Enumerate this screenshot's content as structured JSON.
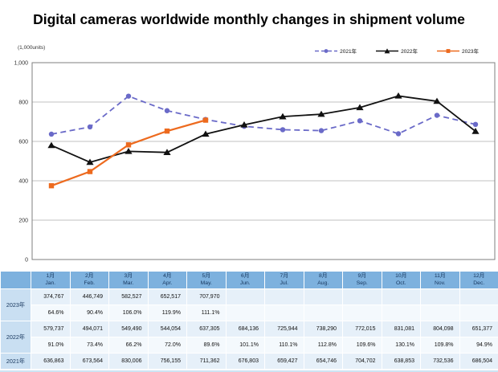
{
  "title": "Digital cameras worldwide monthly changes in shipment volume",
  "chart_data": {
    "type": "line",
    "unit_label": "(1,000units)",
    "x": [
      "Jan.",
      "Feb.",
      "Mar.",
      "Apr.",
      "May.",
      "Jun.",
      "Jul.",
      "Aug.",
      "Sep.",
      "Oct.",
      "Nov.",
      "Dec."
    ],
    "ylim": [
      0,
      1000
    ],
    "yticks": [
      {
        "label": "0",
        "value": 0
      },
      {
        "label": "200",
        "value": 200
      },
      {
        "label": "400",
        "value": 400
      },
      {
        "label": "600",
        "value": 600
      },
      {
        "label": "800",
        "value": 800
      },
      {
        "label": "1,000",
        "value": 1000
      }
    ],
    "grid": "horizontal",
    "legend_position": "top-right",
    "series": [
      {
        "name": "2021年",
        "color": "#6A6AC8",
        "style": "dashed",
        "marker": "circle",
        "values": [
          636.863,
          673.564,
          830.006,
          756.155,
          711.362,
          676.803,
          659.427,
          654.746,
          704.702,
          638.853,
          732.536,
          686.504
        ]
      },
      {
        "name": "2022年",
        "color": "#111111",
        "style": "solid",
        "marker": "triangle",
        "values": [
          579.737,
          494.071,
          549.49,
          544.054,
          637.305,
          684.136,
          725.944,
          738.29,
          772.015,
          831.081,
          804.098,
          651.377
        ]
      },
      {
        "name": "2023年",
        "color": "#ED6A1E",
        "style": "solid",
        "marker": "square",
        "values": [
          374.767,
          446.749,
          582.527,
          652.517,
          707.97,
          null,
          null,
          null,
          null,
          null,
          null,
          null
        ]
      }
    ]
  },
  "table": {
    "months_jp": [
      "1月",
      "2月",
      "3月",
      "4月",
      "5月",
      "6月",
      "7月",
      "8月",
      "9月",
      "10月",
      "11月",
      "12月"
    ],
    "months_en": [
      "Jan.",
      "Feb.",
      "Mar.",
      "Apr.",
      "May.",
      "Jun.",
      "Jul.",
      "Aug.",
      "Sep.",
      "Oct.",
      "Nov.",
      "Dec."
    ],
    "rows": [
      {
        "year": "2023年",
        "values": [
          "374,767",
          "446,749",
          "582,527",
          "652,517",
          "707,970",
          "",
          "",
          "",
          "",
          "",
          "",
          ""
        ],
        "percents": [
          "64.6%",
          "90.4%",
          "106.0%",
          "119.9%",
          "111.1%",
          "",
          "",
          "",
          "",
          "",
          "",
          ""
        ]
      },
      {
        "year": "2022年",
        "values": [
          "579,737",
          "494,071",
          "549,490",
          "544,054",
          "637,305",
          "684,136",
          "725,944",
          "738,290",
          "772,015",
          "831,081",
          "804,098",
          "651,377"
        ],
        "percents": [
          "91.0%",
          "73.4%",
          "66.2%",
          "72.0%",
          "89.6%",
          "101.1%",
          "110.1%",
          "112.8%",
          "109.6%",
          "130.1%",
          "109.8%",
          "94.9%"
        ]
      },
      {
        "year": "2021年",
        "values": [
          "636,863",
          "673,564",
          "830,006",
          "756,155",
          "711,362",
          "676,803",
          "659,427",
          "654,746",
          "704,702",
          "638,853",
          "732,536",
          "686,504"
        ],
        "percents": null
      }
    ]
  },
  "colors": {
    "header_blue": "#7DB1DE",
    "year_cell_blue": "#C9DFF2",
    "value_row": "#E6F0F9",
    "percent_row": "#F4F9FD",
    "grid": "#C0C0C0",
    "plot_border": "#7F7F7F"
  }
}
